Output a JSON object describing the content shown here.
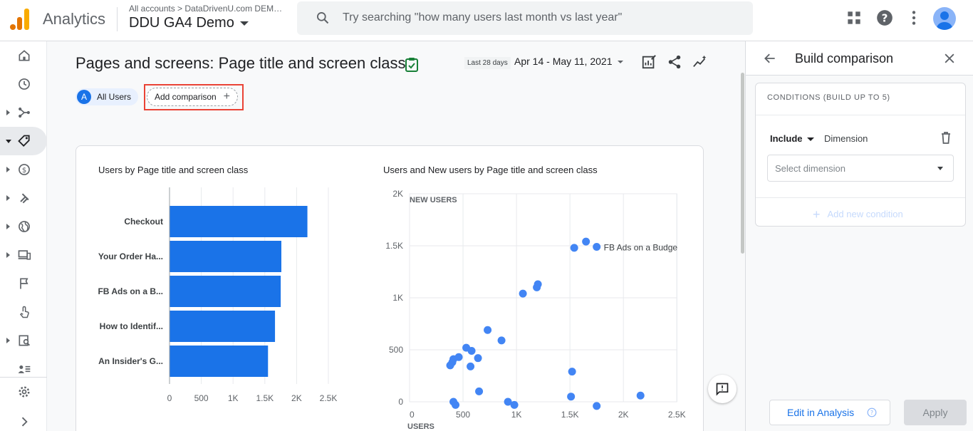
{
  "header": {
    "app_name": "Analytics",
    "breadcrumb": "All accounts > DataDrivenU.com DEM…",
    "property": "DDU GA4 Demo",
    "search_placeholder": "Try searching \"how many users last month vs last year\""
  },
  "report": {
    "title": "Pages and screens: Page title and screen class",
    "date_chip": "Last 28 days",
    "date_range": "Apr 14 - May 11, 2021",
    "segment_badge": "A",
    "segment_label": "All Users",
    "add_comparison": "Add comparison"
  },
  "chart_data": [
    {
      "type": "bar",
      "title": "Users by Page title and screen class",
      "categories": [
        "Checkout",
        "Your Order Ha...",
        "FB Ads on a B...",
        "How to Identif...",
        "An Insider's G..."
      ],
      "values": [
        2170,
        1760,
        1750,
        1660,
        1550
      ],
      "xticks": [
        "0",
        "500",
        "1K",
        "1.5K",
        "2K",
        "2.5K"
      ],
      "xlim": [
        0,
        2500
      ],
      "orientation": "horizontal",
      "grid": true
    },
    {
      "type": "scatter",
      "title": "Users and New users by Page title and screen class",
      "xlabel": "USERS",
      "ylabel": "NEW USERS",
      "xlim": [
        0,
        2500
      ],
      "ylim": [
        0,
        2000
      ],
      "xticks": [
        "0",
        "500",
        "1K",
        "1.5K",
        "2K",
        "2.5K"
      ],
      "yticks": [
        "0",
        "500",
        "1K",
        "1.5K",
        "2K"
      ],
      "annotation": "FB Ads on a Budge",
      "x": [
        1540,
        1650,
        1750,
        1060,
        1190,
        1200,
        730,
        860,
        530,
        580,
        460,
        410,
        400,
        640,
        570,
        380,
        1520,
        650,
        410,
        430,
        920,
        980,
        1510,
        1750,
        2160
      ],
      "y": [
        1480,
        1540,
        1490,
        1040,
        1100,
        1130,
        690,
        590,
        520,
        490,
        430,
        410,
        380,
        420,
        340,
        350,
        290,
        100,
        0,
        -30,
        0,
        -30,
        50,
        -40,
        60
      ],
      "grid": true
    }
  ],
  "panel": {
    "title": "Build comparison",
    "conditions_header": "CONDITIONS (BUILD UP TO 5)",
    "include_label": "Include",
    "dimension_label": "Dimension",
    "select_placeholder": "Select dimension",
    "add_condition": "Add new condition",
    "edit_in_analysis": "Edit in Analysis",
    "apply": "Apply"
  },
  "colors": {
    "accent": "#1a73e8",
    "bar": "#1a73e8",
    "dot": "#4285f4",
    "highlight_border": "#ea4335"
  }
}
